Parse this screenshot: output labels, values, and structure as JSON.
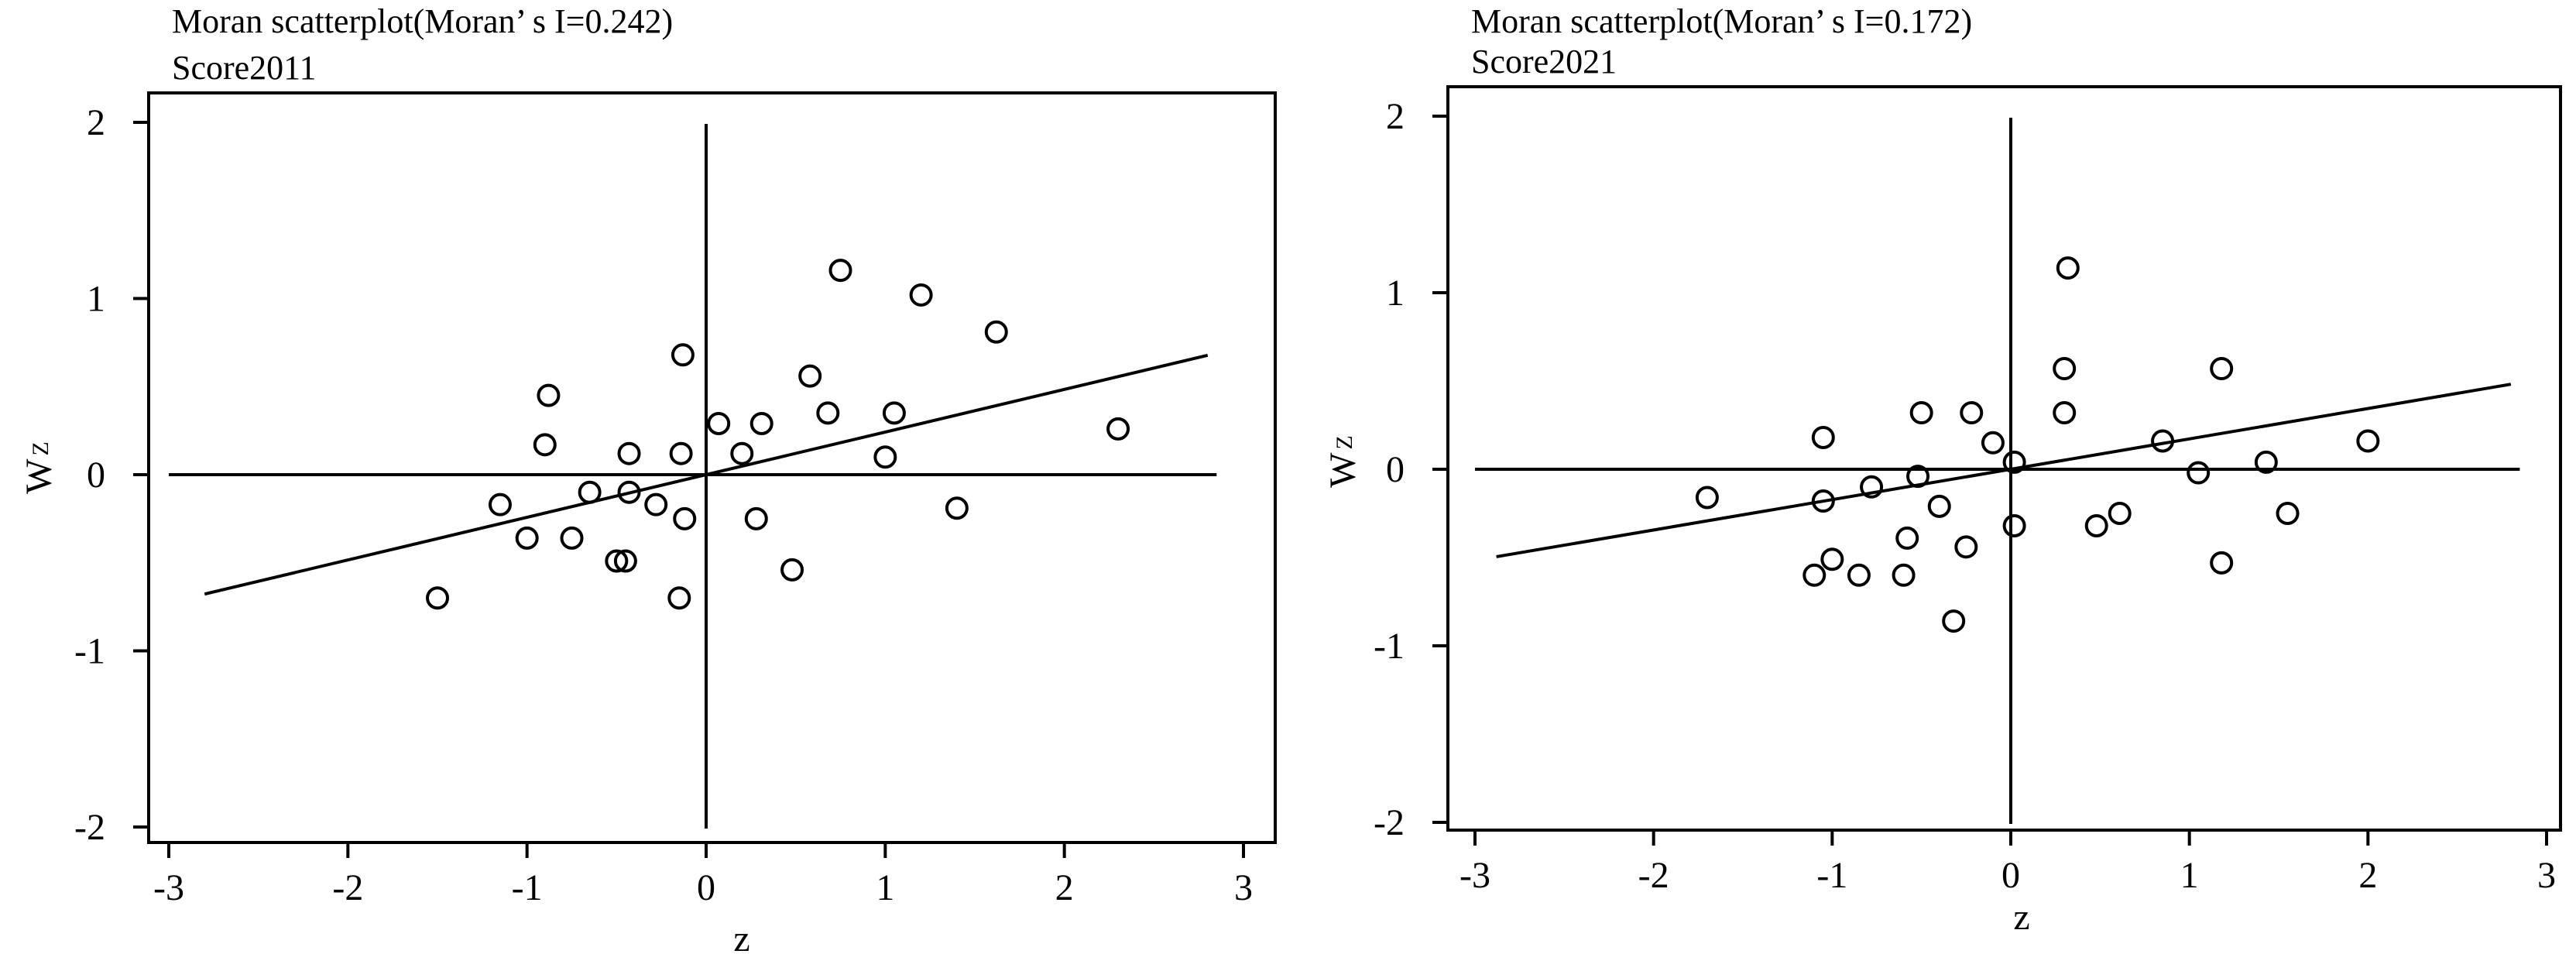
{
  "chart_data": [
    {
      "type": "scatter",
      "title": "Moran scatterplot(Moran’ s I=0.242)",
      "subtitle": "Score2011",
      "xlabel": "z",
      "ylabel": "W",
      "ylabel_sub": "Z",
      "xlim": [
        -3,
        3
      ],
      "ylim": [
        -2,
        2
      ],
      "xticks": [
        -3,
        -2,
        -1,
        0,
        1,
        2,
        3
      ],
      "yticks": [
        -2,
        -1,
        0,
        1,
        2
      ],
      "slope": 0.242,
      "fit_x": [
        -2.8,
        2.8
      ],
      "grid": false,
      "points": [
        [
          -1.5,
          -0.7
        ],
        [
          -1.15,
          -0.17
        ],
        [
          -1.0,
          -0.36
        ],
        [
          -0.88,
          0.45
        ],
        [
          -0.9,
          0.17
        ],
        [
          -0.75,
          -0.36
        ],
        [
          -0.65,
          -0.1
        ],
        [
          -0.5,
          -0.49
        ],
        [
          -0.45,
          -0.49
        ],
        [
          -0.43,
          0.12
        ],
        [
          -0.43,
          -0.1
        ],
        [
          -0.28,
          -0.17
        ],
        [
          -0.15,
          -0.7
        ],
        [
          -0.14,
          0.12
        ],
        [
          -0.13,
          0.68
        ],
        [
          -0.12,
          -0.25
        ],
        [
          0.07,
          0.29
        ],
        [
          0.2,
          0.12
        ],
        [
          0.28,
          -0.25
        ],
        [
          0.31,
          0.29
        ],
        [
          0.48,
          -0.54
        ],
        [
          0.58,
          0.56
        ],
        [
          0.68,
          0.35
        ],
        [
          0.75,
          1.16
        ],
        [
          1.0,
          0.1
        ],
        [
          1.05,
          0.35
        ],
        [
          1.2,
          1.02
        ],
        [
          1.4,
          -0.19
        ],
        [
          1.62,
          0.81
        ],
        [
          2.3,
          0.26
        ]
      ]
    },
    {
      "type": "scatter",
      "title": "Moran scatterplot(Moran’ s I=0.172)",
      "subtitle": "Score2021",
      "xlabel": "z",
      "ylabel": "W",
      "ylabel_sub": "Z",
      "xlim": [
        -3,
        3
      ],
      "ylim": [
        -2,
        2
      ],
      "xticks": [
        -3,
        -2,
        -1,
        0,
        1,
        2,
        3
      ],
      "yticks": [
        -2,
        -1,
        0,
        1,
        2
      ],
      "slope": 0.172,
      "fit_x": [
        -2.88,
        2.8
      ],
      "grid": false,
      "points": [
        [
          -1.7,
          -0.16
        ],
        [
          -1.1,
          -0.6
        ],
        [
          -1.05,
          0.18
        ],
        [
          -1.05,
          -0.18
        ],
        [
          -1.0,
          -0.51
        ],
        [
          -0.85,
          -0.6
        ],
        [
          -0.78,
          -0.1
        ],
        [
          -0.6,
          -0.6
        ],
        [
          -0.58,
          -0.39
        ],
        [
          -0.52,
          -0.04
        ],
        [
          -0.5,
          0.32
        ],
        [
          -0.4,
          -0.21
        ],
        [
          -0.32,
          -0.86
        ],
        [
          -0.25,
          -0.44
        ],
        [
          -0.22,
          0.32
        ],
        [
          -0.1,
          0.15
        ],
        [
          0.02,
          0.04
        ],
        [
          0.02,
          -0.32
        ],
        [
          0.3,
          0.32
        ],
        [
          0.3,
          0.57
        ],
        [
          0.32,
          1.14
        ],
        [
          0.48,
          -0.32
        ],
        [
          0.61,
          -0.25
        ],
        [
          0.85,
          0.16
        ],
        [
          1.05,
          -0.02
        ],
        [
          1.18,
          0.57
        ],
        [
          1.18,
          -0.53
        ],
        [
          1.43,
          0.04
        ],
        [
          1.55,
          -0.25
        ],
        [
          2.0,
          0.16
        ]
      ]
    }
  ]
}
